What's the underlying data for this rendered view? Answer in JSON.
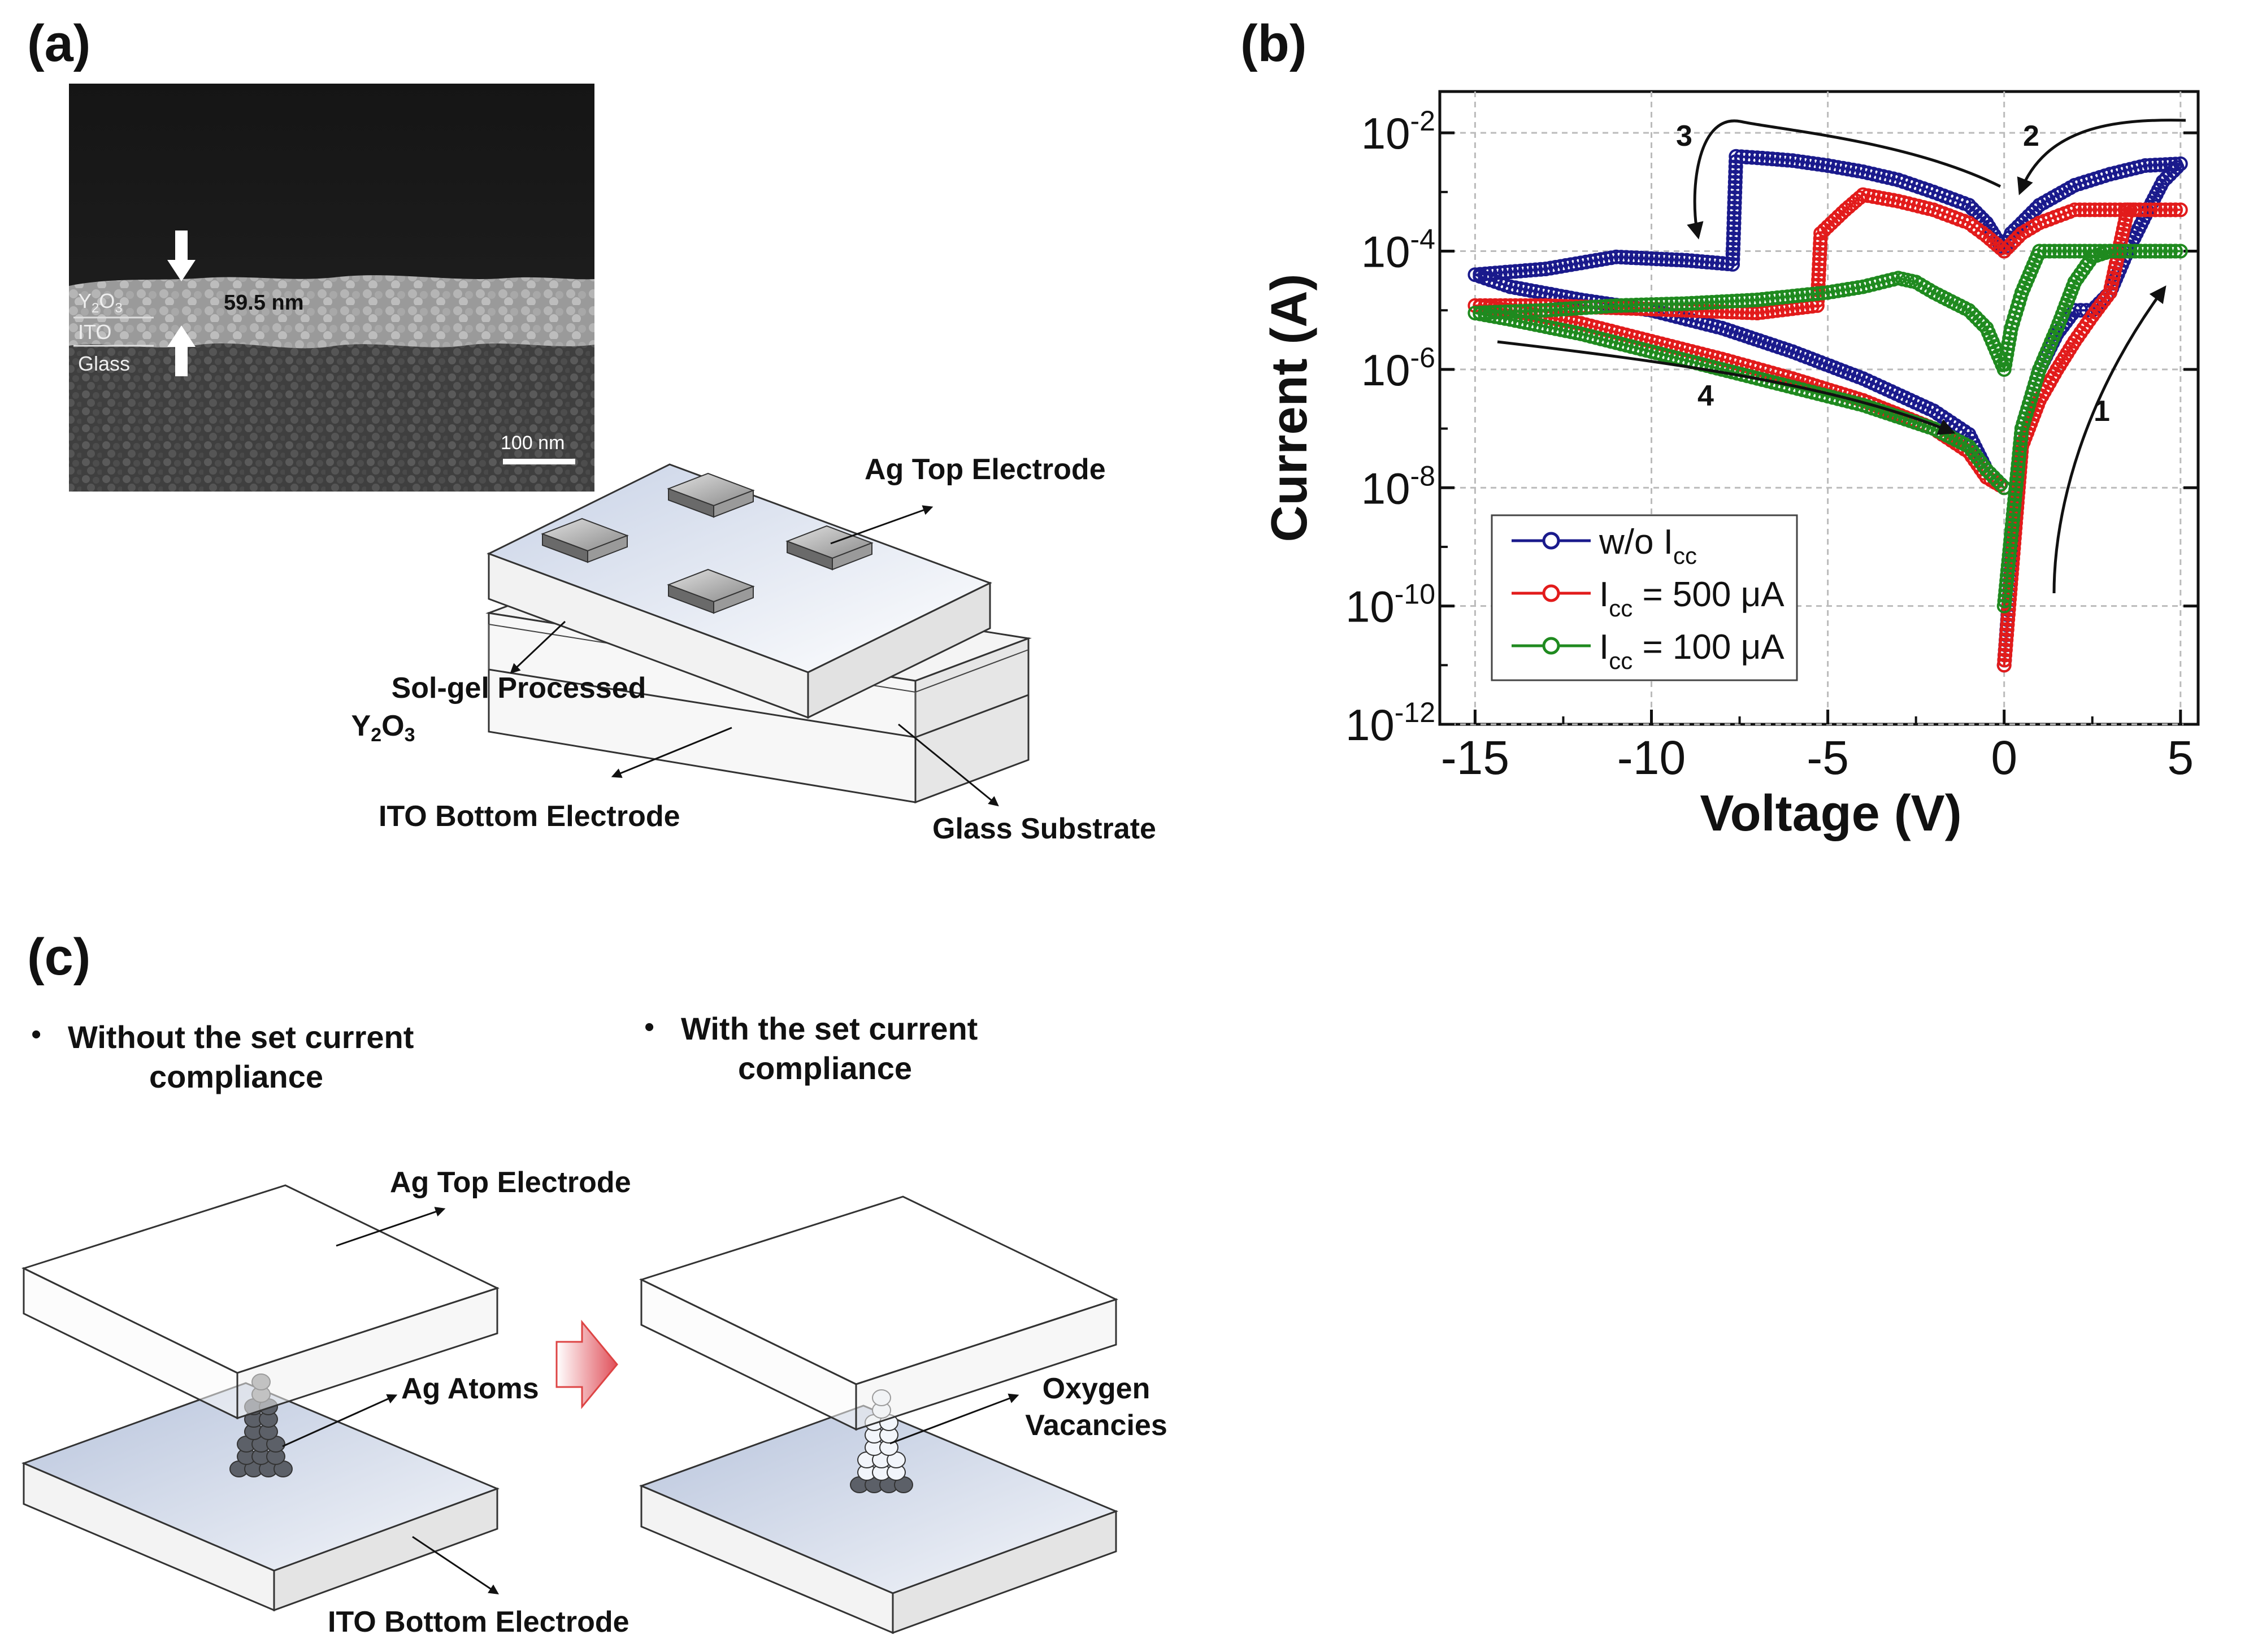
{
  "panel_a": {
    "label": "(a)",
    "sem": {
      "thickness": "59.5 nm",
      "layer_y2o3_main": "Y",
      "layer_y2o3_sub1": "2",
      "layer_y2o3_mid": "O",
      "layer_y2o3_sub2": "3",
      "layer_ito": "ITO",
      "layer_glass": "Glass",
      "scale_bar": "100 nm"
    },
    "schematic": {
      "top_electrode": "Ag Top Electrode",
      "y2o3_line1": "Sol-gel Processed",
      "y2o3_main": "Y",
      "y2o3_sub1": "2",
      "y2o3_mid": "O",
      "y2o3_sub2": "3",
      "bottom_electrode": "ITO Bottom Electrode",
      "substrate": "Glass Substrate"
    }
  },
  "panel_b": {
    "label": "(b)",
    "xlabel": "Voltage (V)",
    "ylabel": "Current (A)",
    "x_ticks": [
      "-15",
      "-10",
      "-5",
      "0",
      "5"
    ],
    "y_tick_base": "10",
    "y_tick_exps": [
      "-2",
      "-4",
      "-6",
      "-8",
      "-10",
      "-12"
    ],
    "sweep_labels": [
      "1",
      "2",
      "3",
      "4"
    ],
    "legend": {
      "s1": "w/o I",
      "s1_sub": "cc",
      "s2_pre": "I",
      "s2_sub": "cc",
      "s2_post": " = 500 μA",
      "s3_pre": "I",
      "s3_sub": "cc",
      "s3_post": " = 100 μA"
    }
  },
  "panel_c": {
    "label": "(c)",
    "left_bullet": "•",
    "left_title_1": "Without the set current",
    "left_title_2": "compliance",
    "right_bullet": "•",
    "right_title_1": "With the set current",
    "right_title_2": "compliance",
    "top_electrode": "Ag Top Electrode",
    "ag_atoms": "Ag Atoms",
    "oxygen_1": "Oxygen",
    "oxygen_2": "Vacancies",
    "bottom_electrode": "ITO Bottom Electrode"
  },
  "colors": {
    "series_wo": "#1a1a8c",
    "series_500": "#e21b1b",
    "series_100": "#1f8a1f"
  },
  "chart_data": {
    "type": "line",
    "xlabel": "Voltage (V)",
    "ylabel": "Current (A)",
    "xlim": [
      -16,
      5.5
    ],
    "ylim": [
      1e-12,
      0.05
    ],
    "y_scale": "log",
    "grid": true,
    "legend_position": "bottom-left",
    "series": [
      {
        "name": "w/o Icc",
        "color": "#1a1a8c",
        "x": [
          0,
          0.5,
          1,
          1.5,
          2,
          2.5,
          3,
          3.5,
          4,
          4.5,
          5,
          4,
          3,
          2,
          1,
          0.5,
          0.2,
          0,
          -0.5,
          -1,
          -2,
          -3,
          -4,
          -5,
          -6,
          -7,
          -7.6,
          -7.7,
          -9,
          -11,
          -13,
          -15,
          -14,
          -12,
          -10,
          -8,
          -6,
          -4,
          -2,
          -1,
          -0.5,
          0
        ],
        "y": [
          1e-11,
          1e-07,
          1e-06,
          4e-06,
          1e-05,
          1e-05,
          2e-05,
          0.0001,
          0.0004,
          0.0015,
          0.003,
          0.0028,
          0.002,
          0.0013,
          0.0006,
          0.0003,
          0.0002,
          0.0001,
          0.0003,
          0.0006,
          0.001,
          0.0016,
          0.0022,
          0.0028,
          0.0034,
          0.0038,
          0.004,
          6e-05,
          7e-05,
          8e-05,
          5e-05,
          4e-05,
          2.5e-05,
          1.5e-05,
          1e-05,
          5e-06,
          2e-06,
          7e-07,
          2e-07,
          8e-08,
          2e-08,
          1e-08
        ]
      },
      {
        "name": "Icc = 500 μA",
        "color": "#e21b1b",
        "x": [
          0,
          0.5,
          1,
          1.5,
          2,
          2.5,
          3,
          3.5,
          4,
          5,
          4,
          3,
          2,
          1,
          0.5,
          0,
          -0.5,
          -1,
          -2,
          -3,
          -4,
          -4.5,
          -5.2,
          -5.3,
          -7,
          -9,
          -11,
          -13,
          -15,
          -14,
          -12,
          -10,
          -8,
          -6,
          -4,
          -2,
          -1,
          -0.5,
          0
        ],
        "y": [
          1e-11,
          5e-08,
          3e-07,
          1e-06,
          3e-06,
          8e-06,
          2e-05,
          0.0005,
          0.0005,
          0.0005,
          0.0005,
          0.0005,
          0.0005,
          0.0003,
          0.0002,
          0.0001,
          0.00018,
          0.0003,
          0.0005,
          0.0007,
          0.0009,
          0.0005,
          0.0002,
          1.2e-05,
          9e-06,
          1e-05,
          1.1e-05,
          1.2e-05,
          1.2e-05,
          1e-05,
          6e-06,
          3e-06,
          1.5e-06,
          7e-07,
          3e-07,
          1e-07,
          4e-08,
          1.5e-08,
          1e-08
        ]
      },
      {
        "name": "Icc = 100 μA",
        "color": "#1f8a1f",
        "x": [
          0,
          0.5,
          1,
          1.5,
          2,
          2.5,
          3,
          4,
          5,
          4,
          3,
          2,
          1,
          0.5,
          0.2,
          0,
          -0.5,
          -1,
          -2,
          -2.5,
          -3,
          -4,
          -5,
          -7,
          -9,
          -11,
          -13,
          -15,
          -14,
          -12,
          -10,
          -8,
          -6,
          -4,
          -2,
          -1,
          -0.5,
          0
        ],
        "y": [
          1e-10,
          1e-07,
          1e-06,
          5e-06,
          3e-05,
          8e-05,
          0.0001,
          0.0001,
          0.0001,
          0.0001,
          0.0001,
          0.0001,
          0.0001,
          2e-05,
          5e-06,
          1e-06,
          5e-06,
          1e-05,
          2e-05,
          3e-05,
          3.5e-05,
          2.5e-05,
          2e-05,
          1.5e-05,
          1.3e-05,
          1.2e-05,
          1e-05,
          9e-06,
          7e-06,
          4e-06,
          2e-06,
          1e-06,
          5e-07,
          2.5e-07,
          1e-07,
          5e-08,
          2e-08,
          1e-08
        ]
      }
    ]
  }
}
